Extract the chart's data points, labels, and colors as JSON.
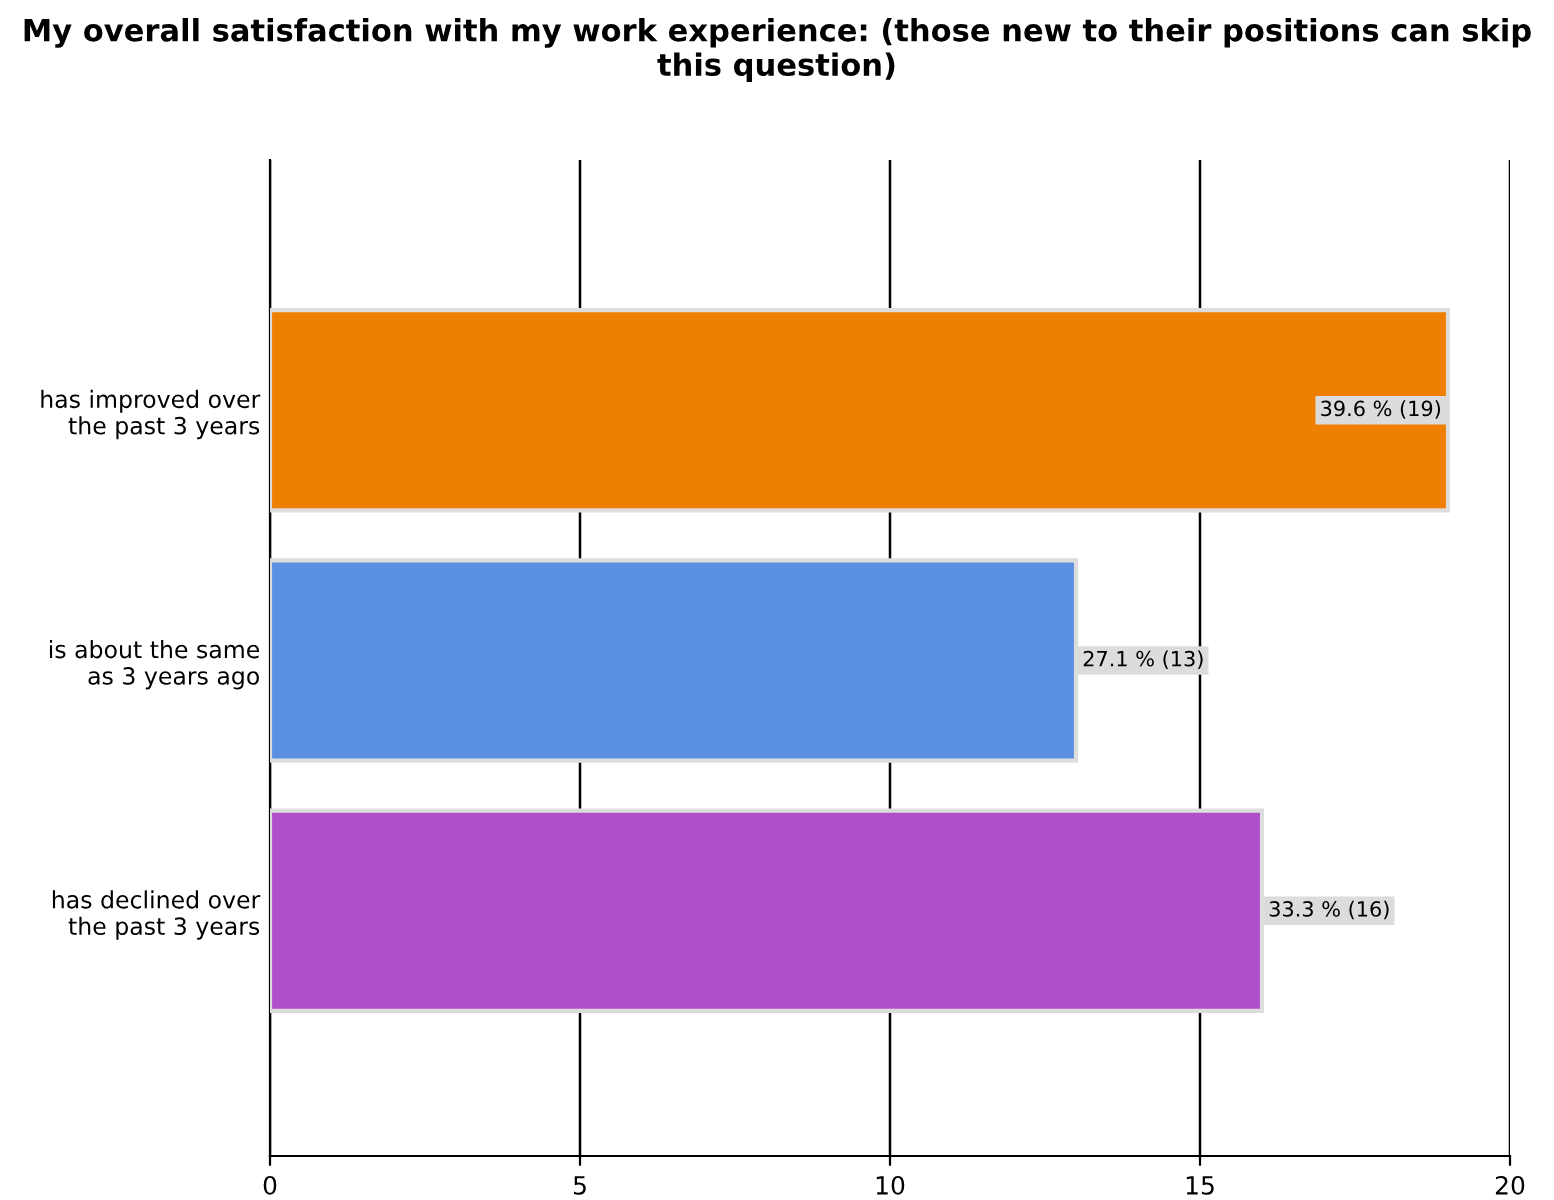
{
  "chart_data": {
    "type": "bar",
    "orientation": "horizontal",
    "title": "My overall satisfaction with my work experience: (those new to their positions can skip this question)",
    "categories": [
      "has improved over\nthe past 3 years",
      "is about the same\nas 3 years ago",
      "has declined over\nthe past 3 years"
    ],
    "values": [
      19,
      13,
      16
    ],
    "colors": [
      "#ee7f00",
      "#5b8fe2",
      "#b14fcb"
    ],
    "value_labels": [
      "39.6 % (19)",
      "27.1 % (13)",
      "33.3 % (16)"
    ],
    "xlim": [
      0,
      20
    ],
    "xticks": [
      0,
      5,
      10,
      15,
      20
    ],
    "grid": "x"
  }
}
